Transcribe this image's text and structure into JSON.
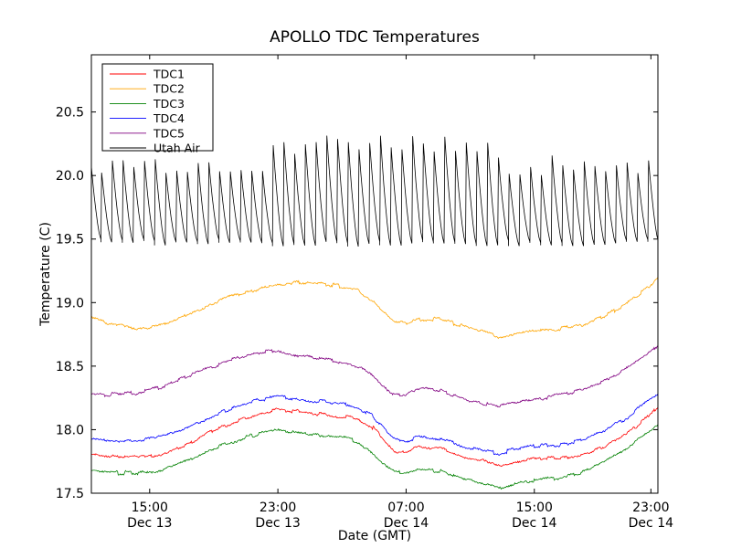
{
  "chart_data": {
    "type": "line",
    "title": "APOLLO TDC Temperatures",
    "xlabel": "Date (GMT)",
    "ylabel": "Temperature (C)",
    "xlim": [
      11,
      35.3
    ],
    "ylim": [
      17.5,
      20.95
    ],
    "yticks": [
      17.5,
      18.0,
      18.5,
      19.0,
      19.5,
      20.0,
      20.5
    ],
    "ytick_labels": [
      "17.5",
      "18.0",
      "18.5",
      "19.0",
      "19.5",
      "20.0",
      "20.5"
    ],
    "xticks": [
      {
        "x": 13.5,
        "time": "15:00",
        "date": "Dec 13"
      },
      {
        "x": 19,
        "time": "23:00",
        "date": "Dec 13"
      },
      {
        "x": 24.5,
        "time": "07:00",
        "date": "Dec 14"
      },
      {
        "x": 30,
        "time": "15:00",
        "date": "Dec 14"
      },
      {
        "x": 35,
        "time": "23:00",
        "date": "Dec 14"
      }
    ],
    "legend_position": "top-left",
    "series": [
      {
        "name": "TDC1",
        "color": "#ff0000",
        "x": [
          11,
          12,
          13,
          14,
          15,
          16,
          17,
          18,
          19,
          20,
          21,
          22,
          22.5,
          23,
          23.5,
          24,
          24.5,
          25,
          26,
          27,
          28,
          28.5,
          29,
          30,
          31,
          32,
          33,
          34,
          35,
          35.3
        ],
        "y": [
          17.81,
          17.79,
          17.78,
          17.81,
          17.88,
          17.97,
          18.05,
          18.12,
          18.16,
          18.14,
          18.12,
          18.1,
          18.08,
          18.03,
          17.93,
          17.83,
          17.82,
          17.86,
          17.85,
          17.79,
          17.74,
          17.72,
          17.74,
          17.77,
          17.78,
          17.8,
          17.86,
          17.97,
          18.12,
          18.19
        ]
      },
      {
        "name": "TDC2",
        "color": "#ffa500",
        "x": [
          11,
          12,
          13,
          14,
          15,
          16,
          17,
          18,
          19,
          20,
          21,
          22,
          22.5,
          23,
          23.5,
          24,
          24.5,
          25,
          26,
          27,
          28,
          28.5,
          29,
          30,
          31,
          32,
          33,
          34,
          35,
          35.3
        ],
        "y": [
          18.88,
          18.83,
          18.8,
          18.82,
          18.89,
          18.97,
          19.05,
          19.1,
          19.15,
          19.16,
          19.15,
          19.12,
          19.09,
          19.02,
          18.93,
          18.85,
          18.83,
          18.87,
          18.87,
          18.81,
          18.76,
          18.73,
          18.75,
          18.78,
          18.79,
          18.82,
          18.89,
          19.0,
          19.14,
          19.2
        ]
      },
      {
        "name": "TDC3",
        "color": "#008000",
        "x": [
          11,
          12,
          13,
          14,
          15,
          16,
          17,
          18,
          19,
          20,
          21,
          22,
          22.5,
          23,
          23.5,
          24,
          24.5,
          25,
          26,
          27,
          28,
          28.5,
          29,
          30,
          31,
          32,
          33,
          34,
          35,
          35.3
        ],
        "y": [
          17.67,
          17.66,
          17.66,
          17.68,
          17.75,
          17.83,
          17.9,
          17.96,
          18.0,
          17.97,
          17.95,
          17.93,
          17.9,
          17.82,
          17.73,
          17.67,
          17.66,
          17.69,
          17.67,
          17.61,
          17.56,
          17.54,
          17.57,
          17.6,
          17.62,
          17.66,
          17.74,
          17.86,
          17.99,
          18.03
        ]
      },
      {
        "name": "TDC4",
        "color": "#0000ff",
        "x": [
          11,
          12,
          13,
          14,
          15,
          16,
          17,
          18,
          19,
          20,
          21,
          22,
          22.5,
          23,
          23.5,
          24,
          24.5,
          25,
          26,
          27,
          28,
          28.5,
          29,
          30,
          31,
          32,
          33,
          34,
          35,
          35.3
        ],
        "y": [
          17.92,
          17.91,
          17.92,
          17.94,
          18.01,
          18.09,
          18.17,
          18.23,
          18.26,
          18.24,
          18.22,
          18.2,
          18.17,
          18.12,
          18.02,
          17.92,
          17.91,
          17.94,
          17.93,
          17.87,
          17.83,
          17.81,
          17.84,
          17.87,
          17.88,
          17.92,
          17.99,
          18.1,
          18.25,
          18.29
        ]
      },
      {
        "name": "TDC5",
        "color": "#800080",
        "x": [
          11,
          12,
          13,
          14,
          15,
          16,
          17,
          18,
          19,
          20,
          21,
          22,
          22.5,
          23,
          23.5,
          24,
          24.5,
          25,
          26,
          27,
          28,
          28.5,
          29,
          30,
          31,
          32,
          33,
          34,
          35,
          35.3
        ],
        "y": [
          18.27,
          18.28,
          18.29,
          18.33,
          18.41,
          18.48,
          18.55,
          18.6,
          18.63,
          18.58,
          18.56,
          18.52,
          18.49,
          18.43,
          18.34,
          18.27,
          18.27,
          18.32,
          18.31,
          18.24,
          18.2,
          18.18,
          18.21,
          18.24,
          18.27,
          18.31,
          18.38,
          18.49,
          18.62,
          18.66
        ]
      },
      {
        "name": "Utah Air",
        "color": "#000000",
        "x": [
          11,
          35.3
        ],
        "y": [
          19.5,
          20.1
        ]
      }
    ]
  }
}
